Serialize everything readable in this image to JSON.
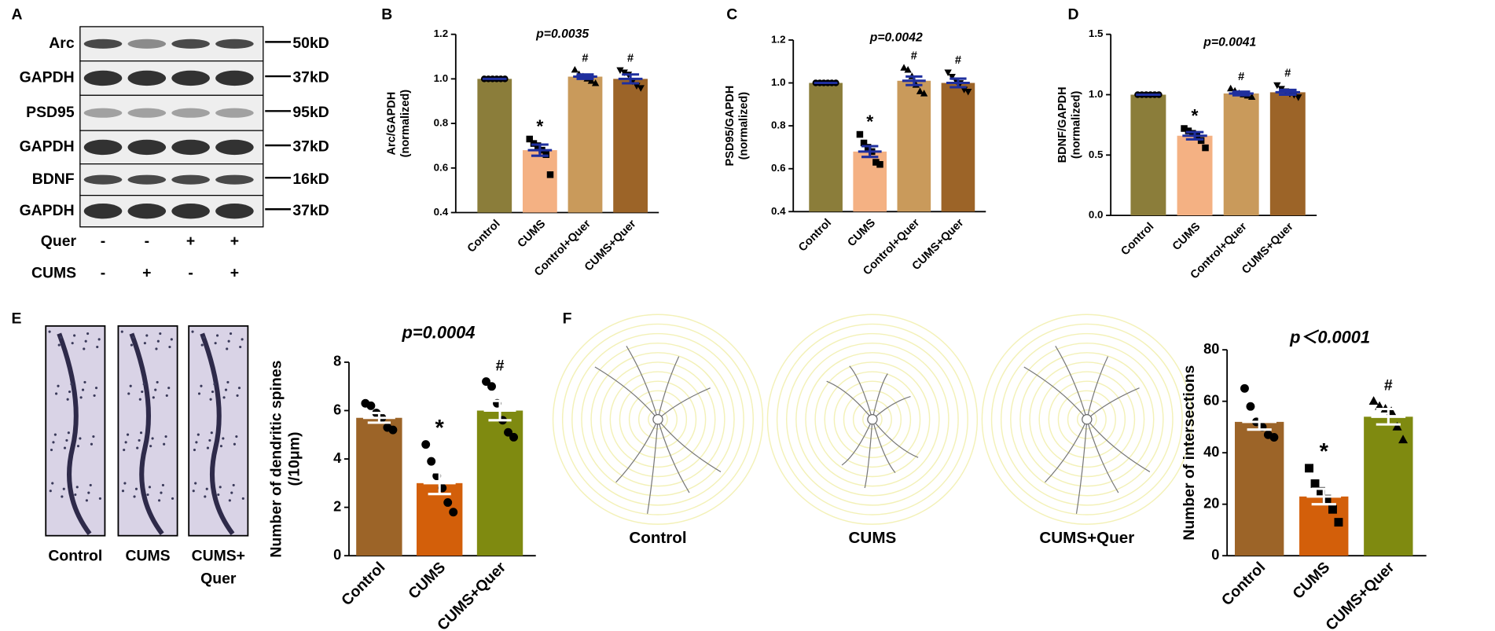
{
  "figure": {
    "panel_letters": [
      "A",
      "B",
      "C",
      "D",
      "E",
      "F"
    ],
    "blot_rows": [
      {
        "protein": "Arc",
        "size": "50kD"
      },
      {
        "protein": "GAPDH",
        "size": "37kD"
      },
      {
        "protein": "PSD95",
        "size": "95kD"
      },
      {
        "protein": "GAPDH",
        "size": "37kD"
      },
      {
        "protein": "BDNF",
        "size": "16kD"
      },
      {
        "protein": "GAPDH",
        "size": "37kD"
      }
    ],
    "treatments": [
      {
        "name": "Quer",
        "signs": [
          "-",
          "-",
          "+",
          "+"
        ]
      },
      {
        "name": "CUMS",
        "signs": [
          "-",
          "+",
          "-",
          "+"
        ]
      }
    ],
    "spine_image_labels": [
      [
        "Control"
      ],
      [
        "CUMS"
      ],
      [
        "CUMS+",
        "Quer"
      ]
    ],
    "neuron_image_labels": [
      "Control",
      "CUMS",
      "CUMS+Quer"
    ]
  },
  "chart_data": [
    {
      "type": "bar",
      "ylabel": "Arc/GAPDH\n(normalized)",
      "p_label": "p=0.0035",
      "categories": [
        "Control",
        "CUMS",
        "Control+Quer",
        "CUMS+Quer"
      ],
      "values": [
        1.0,
        0.68,
        1.01,
        1.0
      ],
      "errors": [
        0,
        0.025,
        0.01,
        0.02
      ],
      "colors": [
        "#8b7d3a",
        "#f4b183",
        "#c99a5b",
        "#9c6428"
      ],
      "error_color": "#1f2f9e",
      "markers": [
        "circle",
        "square",
        "triangle",
        "triangle-down"
      ],
      "annotations": [
        null,
        "*",
        "#",
        "#"
      ],
      "points": [
        [
          1,
          1,
          1,
          1,
          1,
          1
        ],
        [
          0.73,
          0.71,
          0.7,
          0.68,
          0.66,
          0.57
        ],
        [
          1.04,
          1.02,
          1.01,
          1.0,
          0.99,
          0.98
        ],
        [
          1.04,
          1.03,
          1.02,
          0.99,
          0.97,
          0.96
        ]
      ],
      "ylim": [
        0.4,
        1.2
      ],
      "yticks": [
        0.4,
        0.6,
        0.8,
        {
          "value": 1,
          "label": "1.0"
        },
        1.2
      ]
    },
    {
      "type": "bar",
      "ylabel": "PSD95/GAPDH\n(normalized)",
      "p_label": "p=0.0042",
      "categories": [
        "Control",
        "CUMS",
        "Control+Quer",
        "CUMS+Quer"
      ],
      "values": [
        1.0,
        0.68,
        1.01,
        1.0
      ],
      "errors": [
        0,
        0.025,
        0.02,
        0.02
      ],
      "colors": [
        "#8b7d3a",
        "#f4b183",
        "#c99a5b",
        "#9c6428"
      ],
      "error_color": "#1f2f9e",
      "markers": [
        "circle",
        "square",
        "triangle",
        "triangle-down"
      ],
      "annotations": [
        null,
        "*",
        "#",
        "#"
      ],
      "points": [
        [
          1,
          1,
          1,
          1,
          1,
          1
        ],
        [
          0.76,
          0.72,
          0.7,
          0.68,
          0.63,
          0.62
        ],
        [
          1.07,
          1.06,
          1.03,
          0.99,
          0.96,
          0.95
        ],
        [
          1.05,
          1.03,
          1.01,
          1.0,
          0.97,
          0.96
        ]
      ],
      "ylim": [
        0.4,
        1.2
      ],
      "yticks": [
        0.4,
        0.6,
        0.8,
        {
          "value": 1,
          "label": "1.0"
        },
        1.2
      ]
    },
    {
      "type": "bar",
      "ylabel": "BDNF/GAPDH\n(normalized)",
      "p_label": "p=0.0041",
      "categories": [
        "Control",
        "CUMS",
        "Control+Quer",
        "CUMS+Quer"
      ],
      "values": [
        1.0,
        0.66,
        1.01,
        1.02
      ],
      "errors": [
        0,
        0.03,
        0.015,
        0.02
      ],
      "colors": [
        "#8b7d3a",
        "#f4b183",
        "#c99a5b",
        "#9c6428"
      ],
      "error_color": "#1f2f9e",
      "markers": [
        "circle",
        "square",
        "triangle",
        "triangle-down"
      ],
      "annotations": [
        null,
        "*",
        "#",
        "#"
      ],
      "points": [
        [
          1,
          1,
          1,
          1,
          1,
          1
        ],
        [
          0.72,
          0.7,
          0.68,
          0.66,
          0.62,
          0.56
        ],
        [
          1.05,
          1.03,
          1.01,
          1.0,
          0.99,
          0.98
        ],
        [
          1.08,
          1.05,
          1.03,
          1.01,
          1.0,
          0.98
        ]
      ],
      "ylim": [
        0,
        1.5
      ],
      "yticks": [
        {
          "value": 0,
          "label": "0.0"
        },
        0.5,
        {
          "value": 1,
          "label": "1.0"
        },
        1.5
      ]
    },
    {
      "type": "bar",
      "ylabel": "Number of dendritic spines\n(/10μm)",
      "p_label": "p=0.0004",
      "categories": [
        "Control",
        "CUMS",
        "CUMS+Quer"
      ],
      "values": [
        5.7,
        3.0,
        6.0
      ],
      "errors": [
        0.2,
        0.45,
        0.4
      ],
      "colors": [
        "#9c6428",
        "#d35f0a",
        "#7f8a10"
      ],
      "error_color": "#ffffff",
      "markers": [
        "circle",
        "circle",
        "circle"
      ],
      "annotations": [
        null,
        "*",
        "#"
      ],
      "points": [
        [
          6.3,
          6.2,
          5.9,
          5.7,
          5.3,
          5.2
        ],
        [
          4.6,
          3.9,
          3.3,
          2.8,
          2.2,
          1.8
        ],
        [
          7.2,
          7.0,
          6.3,
          5.6,
          5.1,
          4.9
        ]
      ],
      "ylim": [
        0,
        8
      ],
      "yticks": [
        0,
        2,
        4,
        6,
        8
      ]
    },
    {
      "type": "bar",
      "ylabel": "Number of intersections",
      "p_label": "p＜0.0001",
      "categories": [
        "Control",
        "CUMS",
        "CUMS+Quer"
      ],
      "values": [
        52,
        23,
        54
      ],
      "errors": [
        3,
        3,
        3
      ],
      "colors": [
        "#9c6428",
        "#d35f0a",
        "#7f8a10"
      ],
      "error_color": "#ffffff",
      "markers": [
        "circle",
        "square",
        "triangle"
      ],
      "annotations": [
        null,
        "*",
        "#"
      ],
      "points": [
        [
          65,
          58,
          52,
          50,
          47,
          46
        ],
        [
          34,
          28,
          25,
          22,
          18,
          13
        ],
        [
          60,
          58,
          57,
          56,
          50,
          45
        ]
      ],
      "ylim": [
        0,
        80
      ],
      "yticks": [
        0,
        20,
        40,
        60,
        80
      ]
    }
  ]
}
